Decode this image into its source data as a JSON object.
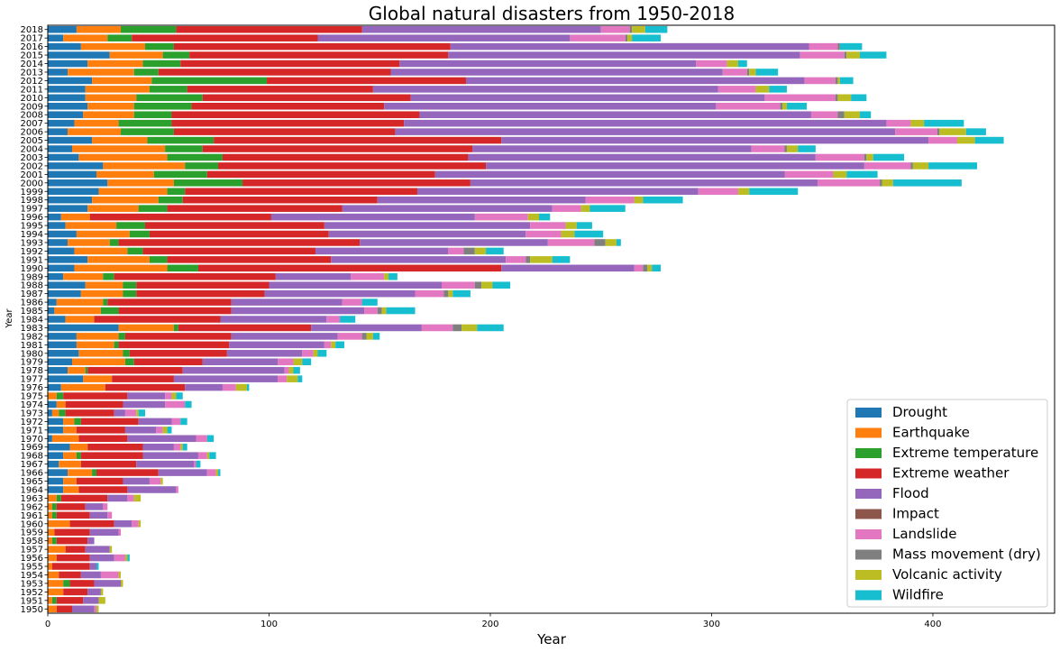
{
  "chart_data": {
    "type": "bar",
    "orientation": "horizontal",
    "stacked": true,
    "title": "Global natural disasters from 1950-2018",
    "xlabel": "Year",
    "ylabel": "Year",
    "xlim": [
      0,
      455
    ],
    "xticks": [
      "0",
      "100",
      "200",
      "300",
      "400"
    ],
    "xtick_values": [
      0,
      100,
      200,
      300,
      400
    ],
    "grid": false,
    "legend_position": "lower-right",
    "categories": [
      "1950",
      "1951",
      "1952",
      "1953",
      "1954",
      "1955",
      "1956",
      "1957",
      "1958",
      "1959",
      "1960",
      "1961",
      "1962",
      "1963",
      "1964",
      "1965",
      "1966",
      "1967",
      "1968",
      "1969",
      "1970",
      "1971",
      "1972",
      "1973",
      "1974",
      "1975",
      "1976",
      "1977",
      "1978",
      "1979",
      "1980",
      "1981",
      "1982",
      "1983",
      "1984",
      "1985",
      "1986",
      "1987",
      "1988",
      "1989",
      "1990",
      "1991",
      "1992",
      "1993",
      "1994",
      "1995",
      "1996",
      "1997",
      "1998",
      "1999",
      "2000",
      "2001",
      "2002",
      "2003",
      "2004",
      "2005",
      "2006",
      "2007",
      "2008",
      "2009",
      "2010",
      "2011",
      "2012",
      "2013",
      "2014",
      "2015",
      "2016",
      "2017",
      "2018"
    ],
    "series": [
      {
        "name": "Drought",
        "color": "#1f77b4",
        "values": [
          0,
          0,
          0,
          0,
          0,
          0,
          0,
          0,
          0,
          0,
          0,
          0,
          0,
          0,
          7,
          7,
          9,
          5,
          7,
          10,
          2,
          7,
          7,
          2,
          4,
          0,
          6,
          16,
          9,
          11,
          14,
          13,
          13,
          32,
          8,
          3,
          4,
          15,
          17,
          7,
          12,
          18,
          12,
          9,
          13,
          8,
          6,
          18,
          20,
          23,
          27,
          22,
          25,
          14,
          11,
          20,
          9,
          12,
          16,
          18,
          17,
          17,
          20,
          9,
          18,
          28,
          15,
          7,
          13
        ]
      },
      {
        "name": "Earthquake",
        "color": "#ff7f0e",
        "values": [
          4,
          2,
          7,
          7,
          5,
          2,
          4,
          8,
          2,
          3,
          10,
          2,
          2,
          4,
          7,
          6,
          11,
          10,
          6,
          8,
          12,
          6,
          5,
          3,
          4,
          4,
          20,
          13,
          8,
          24,
          20,
          17,
          19,
          25,
          13,
          21,
          21,
          19,
          17,
          18,
          42,
          28,
          24,
          19,
          24,
          23,
          13,
          23,
          30,
          31,
          30,
          26,
          37,
          40,
          42,
          25,
          24,
          20,
          23,
          21,
          23,
          29,
          27,
          30,
          25,
          24,
          29,
          20,
          20
        ]
      },
      {
        "name": "Extreme temperature",
        "color": "#2ca02c",
        "values": [
          0,
          2,
          0,
          3,
          0,
          0,
          0,
          0,
          2,
          0,
          0,
          2,
          2,
          2,
          0,
          0,
          2,
          0,
          2,
          0,
          0,
          0,
          3,
          3,
          0,
          3,
          0,
          0,
          1,
          4,
          3,
          2,
          3,
          2,
          0,
          8,
          2,
          6,
          6,
          5,
          14,
          8,
          7,
          4,
          9,
          13,
          0,
          13,
          11,
          8,
          31,
          24,
          15,
          25,
          17,
          30,
          24,
          24,
          17,
          26,
          30,
          17,
          52,
          11,
          17,
          12,
          13,
          11,
          25
        ]
      },
      {
        "name": "Extreme weather",
        "color": "#d62728",
        "values": [
          7,
          12,
          11,
          11,
          10,
          17,
          15,
          9,
          14,
          16,
          20,
          15,
          13,
          21,
          22,
          21,
          28,
          25,
          28,
          25,
          22,
          22,
          26,
          22,
          26,
          29,
          36,
          28,
          43,
          31,
          44,
          50,
          48,
          60,
          57,
          51,
          56,
          58,
          60,
          73,
          137,
          74,
          78,
          109,
          81,
          81,
          82,
          79,
          88,
          105,
          103,
          103,
          121,
          111,
          122,
          130,
          100,
          105,
          112,
          87,
          94,
          84,
          90,
          105,
          99,
          117,
          125,
          84,
          84
        ]
      },
      {
        "name": "Flood",
        "color": "#9467bd",
        "values": [
          10,
          7,
          6,
          12,
          9,
          3,
          11,
          11,
          3,
          13,
          8,
          8,
          8,
          9,
          22,
          12,
          22,
          26,
          25,
          14,
          31,
          14,
          15,
          5,
          19,
          17,
          17,
          47,
          46,
          34,
          34,
          43,
          48,
          50,
          48,
          60,
          50,
          68,
          78,
          34,
          60,
          79,
          60,
          85,
          89,
          93,
          92,
          95,
          94,
          127,
          157,
          158,
          171,
          157,
          126,
          193,
          226,
          218,
          177,
          150,
          160,
          156,
          153,
          150,
          134,
          159,
          162,
          114,
          108
        ]
      },
      {
        "name": "Impact",
        "color": "#8c564b",
        "values": [
          0,
          0,
          0,
          0,
          0,
          0,
          0,
          0,
          0,
          0,
          0,
          0,
          0,
          0,
          0,
          0,
          0,
          0,
          0,
          0,
          0,
          0,
          0,
          0,
          0,
          0,
          0,
          0,
          0,
          0,
          0,
          0,
          0,
          0,
          0,
          0,
          0,
          0,
          0,
          0,
          0,
          0,
          0,
          0,
          0,
          0,
          0,
          0,
          0,
          0,
          0,
          0,
          0,
          0,
          0,
          0,
          0,
          0,
          0,
          0,
          0,
          0,
          0,
          0,
          0,
          0,
          0,
          0,
          0
        ]
      },
      {
        "name": "Landslide",
        "color": "#e377c2",
        "values": [
          1,
          0,
          0,
          0,
          8,
          0,
          5,
          0,
          0,
          1,
          3,
          2,
          2,
          3,
          1,
          5,
          4,
          1,
          4,
          3,
          5,
          3,
          4,
          5,
          9,
          3,
          6,
          4,
          2,
          7,
          5,
          3,
          11,
          14,
          6,
          6,
          9,
          13,
          15,
          15,
          4,
          9,
          7,
          21,
          16,
          16,
          24,
          13,
          22,
          18,
          28,
          22,
          21,
          22,
          15,
          13,
          19,
          11,
          12,
          29,
          32,
          17,
          14,
          11,
          14,
          20,
          13,
          25,
          13
        ]
      },
      {
        "name": "Mass movement (dry)",
        "color": "#7f7f7f",
        "values": [
          0,
          0,
          0,
          0,
          0,
          0,
          0,
          0,
          0,
          0,
          0,
          0,
          0,
          0,
          0,
          0,
          0,
          0,
          0,
          0,
          0,
          0,
          0,
          0,
          0,
          0,
          0,
          0,
          0,
          0,
          0,
          0,
          2,
          4,
          0,
          2,
          0,
          2,
          3,
          0,
          2,
          2,
          5,
          5,
          0,
          0,
          0,
          0,
          0,
          0,
          1,
          0,
          1,
          1,
          1,
          0,
          1,
          0,
          3,
          1,
          1,
          0,
          1,
          1,
          0,
          1,
          1,
          1,
          1
        ]
      },
      {
        "name": "Volcanic activity",
        "color": "#bcbd22",
        "values": [
          1,
          3,
          1,
          1,
          1,
          0,
          1,
          1,
          0,
          0,
          1,
          0,
          0,
          3,
          0,
          1,
          1,
          0,
          1,
          1,
          0,
          2,
          0,
          1,
          0,
          2,
          5,
          5,
          2,
          4,
          2,
          2,
          3,
          7,
          0,
          2,
          0,
          2,
          5,
          2,
          2,
          10,
          5,
          5,
          6,
          5,
          5,
          4,
          4,
          5,
          5,
          6,
          7,
          3,
          5,
          8,
          12,
          6,
          7,
          2,
          6,
          6,
          1,
          3,
          5,
          6,
          0,
          2,
          6
        ]
      },
      {
        "name": "Wildfire",
        "color": "#17becf",
        "values": [
          0,
          0,
          0,
          0,
          0,
          1,
          1,
          0,
          0,
          0,
          0,
          0,
          0,
          0,
          0,
          0,
          1,
          2,
          3,
          2,
          3,
          2,
          3,
          3,
          3,
          3,
          1,
          2,
          3,
          4,
          4,
          4,
          3,
          12,
          7,
          13,
          7,
          8,
          8,
          4,
          4,
          8,
          8,
          2,
          13,
          7,
          5,
          16,
          18,
          22,
          31,
          14,
          22,
          14,
          8,
          13,
          9,
          18,
          5,
          9,
          7,
          8,
          6,
          10,
          4,
          12,
          10,
          13,
          10
        ]
      }
    ]
  }
}
